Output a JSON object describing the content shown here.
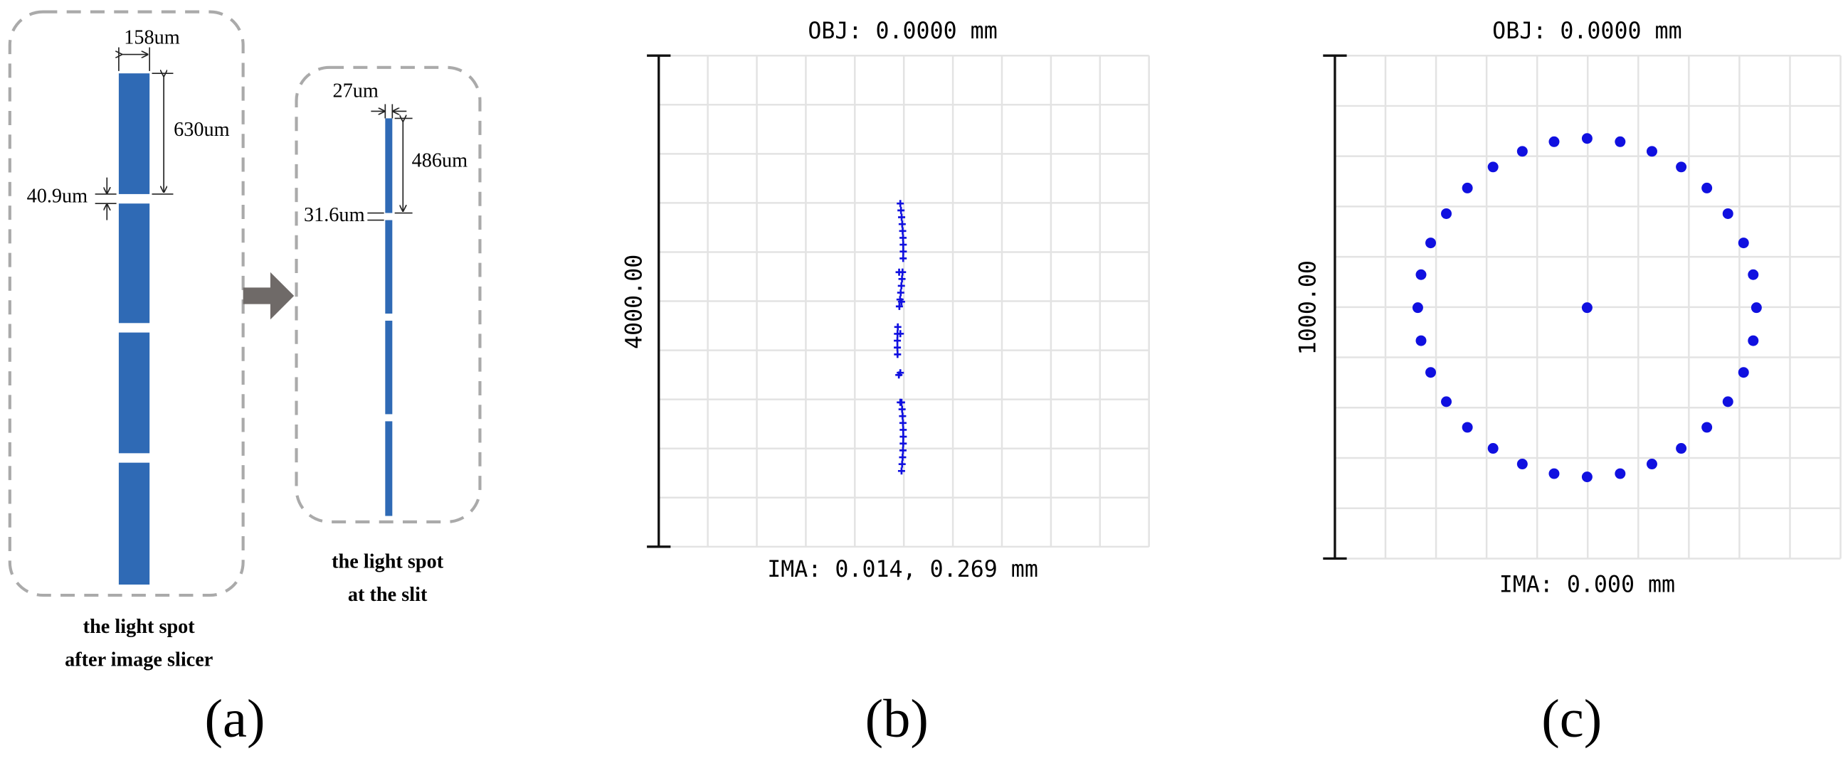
{
  "panel_a": {
    "label": "(a)",
    "after_slicer": {
      "width": "158um",
      "length": "630um",
      "gap": "40.9um",
      "caption": [
        "the light spot",
        "after image slicer"
      ]
    },
    "at_slit": {
      "width": "27um",
      "length": "486um",
      "gap": "31.6um",
      "caption": [
        "the light spot",
        "at the slit"
      ]
    }
  },
  "panel_b": {
    "label": "(b)",
    "title": "OBJ: 0.0000 mm",
    "footer": "IMA: 0.014, 0.269 mm",
    "scale": "4000.00"
  },
  "panel_c": {
    "label": "(c)",
    "title": "OBJ: 0.0000 mm",
    "footer": "IMA: 0.000 mm",
    "scale": "1000.00"
  }
}
